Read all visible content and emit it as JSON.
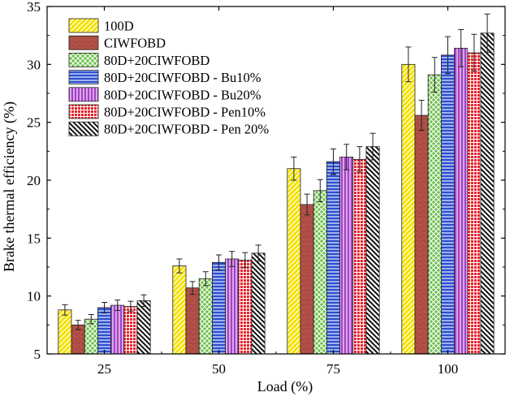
{
  "chart_data": {
    "type": "bar",
    "title": "",
    "xlabel": "Load (%)",
    "ylabel": "Brake thermal efficiency (%)",
    "ylim": [
      5,
      35
    ],
    "yticks": [
      5,
      10,
      15,
      20,
      25,
      30,
      35
    ],
    "categories": [
      "25",
      "50",
      "75",
      "100"
    ],
    "grid": false,
    "legend_position": "top-left",
    "error_bars": true,
    "series": [
      {
        "name": "100D",
        "values": [
          8.8,
          12.6,
          21.0,
          30.0
        ],
        "errors": [
          0.45,
          0.6,
          1.0,
          1.5
        ],
        "color": "#f5e200",
        "pattern": "diagonal-right"
      },
      {
        "name": "CIWFOBD",
        "values": [
          7.5,
          10.7,
          17.9,
          25.6
        ],
        "errors": [
          0.4,
          0.55,
          0.9,
          1.3
        ],
        "color": "#b5544a",
        "pattern": "brick"
      },
      {
        "name": "80D+20CIWFOBD",
        "values": [
          8.0,
          11.5,
          19.1,
          29.1
        ],
        "errors": [
          0.4,
          0.6,
          0.95,
          1.5
        ],
        "color": "#6cc04a",
        "pattern": "crosshatch"
      },
      {
        "name": "80D+20CIWFOBD - Bu10%",
        "values": [
          9.0,
          12.9,
          21.6,
          30.8
        ],
        "errors": [
          0.45,
          0.65,
          1.1,
          1.6
        ],
        "color": "#2b4fd0",
        "pattern": "horizontal"
      },
      {
        "name": "80D+20CIWFOBD - Bu20%",
        "values": [
          9.2,
          13.2,
          22.0,
          31.4
        ],
        "errors": [
          0.45,
          0.65,
          1.1,
          1.6
        ],
        "color": "#a640c8",
        "pattern": "vertical"
      },
      {
        "name": "80D+20CIWFOBD - Pen10%",
        "values": [
          9.1,
          13.1,
          21.8,
          31.0
        ],
        "errors": [
          0.45,
          0.65,
          1.1,
          1.6
        ],
        "color": "#e8202a",
        "pattern": "grid"
      },
      {
        "name": "80D+20CIWFOBD - Pen 20%",
        "values": [
          9.6,
          13.7,
          22.9,
          32.7
        ],
        "errors": [
          0.5,
          0.7,
          1.15,
          1.65
        ],
        "color": "#111111",
        "pattern": "diagonal-left"
      }
    ]
  }
}
